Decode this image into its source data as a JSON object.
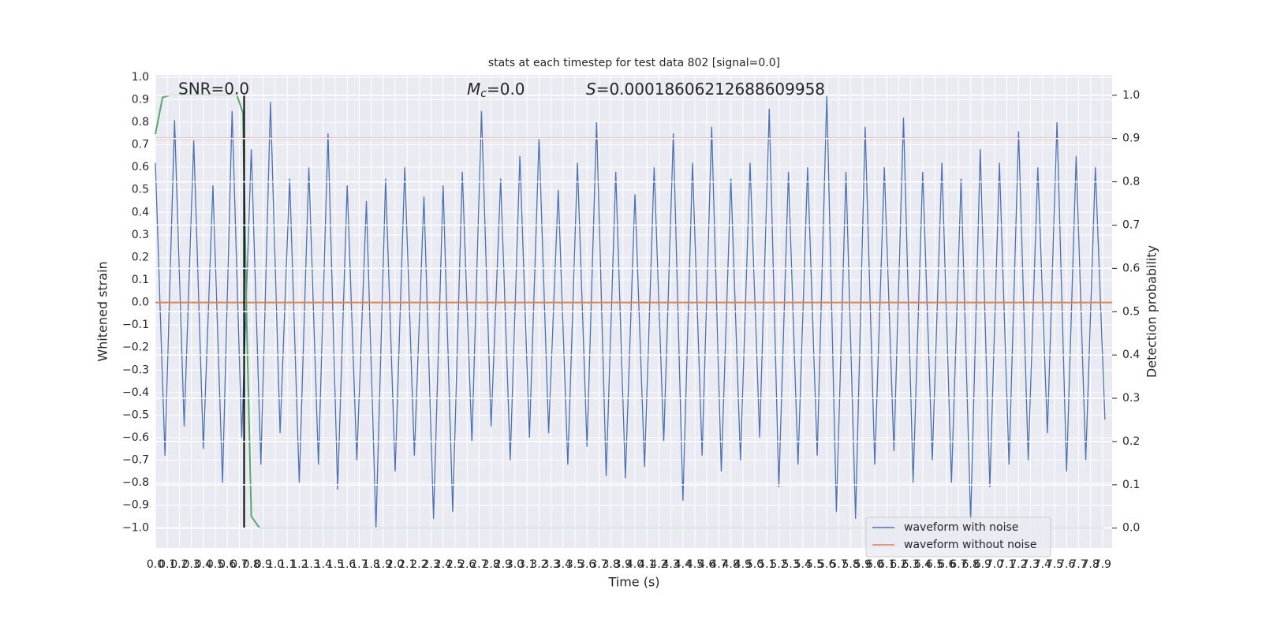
{
  "chart_data": {
    "type": "line",
    "title": "stats at each timestep for test data 802 [signal=0.0]",
    "xlabel": "Time (s)",
    "ylabel": "Whitened strain",
    "y2label": "Detection probability",
    "xlim": [
      0,
      7.98
    ],
    "ylim": [
      -1.09,
      1.01
    ],
    "y2lim": [
      -0.046,
      1.047
    ],
    "xticks": [
      {
        "value": 0,
        "label": "0.0"
      },
      0.1,
      0.2,
      0.3,
      0.4,
      0.5,
      0.6,
      0.7,
      0.8,
      0.9,
      {
        "value": 1,
        "label": "1.0"
      },
      1.1,
      1.2,
      1.3,
      1.4,
      1.5,
      1.6,
      1.7,
      1.8,
      1.9,
      {
        "value": 2,
        "label": "2.0"
      },
      2.1,
      2.2,
      2.3,
      2.4,
      2.5,
      2.6,
      2.7,
      2.8,
      2.9,
      {
        "value": 3,
        "label": "3.0"
      },
      3.1,
      3.2,
      3.3,
      3.4,
      3.5,
      3.6,
      3.7,
      3.8,
      3.9,
      {
        "value": 4,
        "label": "4.0"
      },
      4.1,
      4.2,
      4.3,
      4.4,
      4.5,
      4.6,
      4.7,
      4.8,
      4.9,
      {
        "value": 5,
        "label": "5.0"
      },
      5.1,
      5.2,
      5.3,
      5.4,
      5.5,
      5.6,
      5.7,
      5.8,
      5.9,
      {
        "value": 6,
        "label": "6.0"
      },
      6.1,
      6.2,
      6.3,
      6.4,
      6.5,
      6.6,
      6.7,
      6.8,
      6.9,
      {
        "value": 7,
        "label": "7.0"
      },
      7.1,
      7.2,
      7.3,
      7.4,
      7.5,
      7.6,
      7.7,
      7.8,
      7.9
    ],
    "yticks": [
      {
        "value": -1,
        "label": "−1.0"
      },
      {
        "value": -0.9,
        "label": "−0.9"
      },
      {
        "value": -0.8,
        "label": "−0.8"
      },
      {
        "value": -0.7,
        "label": "−0.7"
      },
      {
        "value": -0.6,
        "label": "−0.6"
      },
      {
        "value": -0.5,
        "label": "−0.5"
      },
      {
        "value": -0.4,
        "label": "−0.4"
      },
      {
        "value": -0.3,
        "label": "−0.3"
      },
      {
        "value": -0.2,
        "label": "−0.2"
      },
      {
        "value": -0.1,
        "label": "−0.1"
      },
      {
        "value": 0,
        "label": "0.0"
      },
      0.1,
      0.2,
      0.3,
      0.4,
      0.5,
      0.6,
      0.7,
      0.8,
      0.9,
      {
        "value": 1,
        "label": "1.0"
      }
    ],
    "y2ticks": [
      {
        "value": 0,
        "label": "0.0"
      },
      0.1,
      0.2,
      0.3,
      0.4,
      0.5,
      0.6,
      0.7,
      0.8,
      0.9,
      {
        "value": 1,
        "label": "1.0"
      }
    ],
    "grid": true,
    "legend": "lower right",
    "series": [
      {
        "name": "waveform with noise",
        "color": "#4c72b0",
        "x": [
          0,
          0.08,
          0.16,
          0.24,
          0.32,
          0.4,
          0.48,
          0.56,
          0.64,
          0.72,
          0.8,
          0.88,
          0.96,
          1.04,
          1.12,
          1.2,
          1.28,
          1.36,
          1.44,
          1.52,
          1.6,
          1.68,
          1.76,
          1.84,
          1.92,
          2,
          2.08,
          2.16,
          2.24,
          2.32,
          2.4,
          2.48,
          2.56,
          2.64,
          2.72,
          2.8,
          2.88,
          2.96,
          3.04,
          3.12,
          3.2,
          3.28,
          3.36,
          3.44,
          3.52,
          3.6,
          3.68,
          3.76,
          3.84,
          3.92,
          4,
          4.08,
          4.16,
          4.24,
          4.32,
          4.4,
          4.48,
          4.56,
          4.64,
          4.72,
          4.8,
          4.88,
          4.96,
          5.04,
          5.12,
          5.2,
          5.28,
          5.36,
          5.44,
          5.52,
          5.6,
          5.68,
          5.76,
          5.84,
          5.92,
          6,
          6.08,
          6.16,
          6.24,
          6.32,
          6.4,
          6.48,
          6.56,
          6.64,
          6.72,
          6.8,
          6.88,
          6.96,
          7.04,
          7.12,
          7.2,
          7.28,
          7.36,
          7.44,
          7.52,
          7.6,
          7.68,
          7.76,
          7.84,
          7.92
        ],
        "values": [
          0.62,
          -0.68,
          0.81,
          -0.55,
          0.72,
          -0.65,
          0.52,
          -0.8,
          0.85,
          -0.6,
          0.68,
          -0.72,
          0.89,
          -0.58,
          0.55,
          -0.8,
          0.6,
          -0.72,
          0.75,
          -0.83,
          0.52,
          -0.7,
          0.45,
          -1.0,
          0.55,
          -0.75,
          0.6,
          -0.68,
          0.47,
          -0.96,
          0.52,
          -0.93,
          0.58,
          -0.62,
          0.85,
          -0.55,
          0.55,
          -0.7,
          0.65,
          -0.6,
          0.73,
          -0.58,
          0.5,
          -0.72,
          0.62,
          -0.64,
          0.8,
          -0.77,
          0.58,
          -0.78,
          0.48,
          -0.73,
          0.6,
          -0.62,
          0.75,
          -0.88,
          0.62,
          -0.68,
          0.78,
          -0.75,
          0.55,
          -0.7,
          0.62,
          -0.6,
          0.86,
          -0.82,
          0.58,
          -0.72,
          0.6,
          -0.68,
          0.92,
          -0.93,
          0.58,
          -0.96,
          0.78,
          -0.72,
          0.6,
          -0.66,
          0.82,
          -0.8,
          0.58,
          -0.7,
          0.62,
          -0.8,
          0.55,
          -0.97,
          0.68,
          -0.82,
          0.62,
          -0.72,
          0.76,
          -0.7,
          0.6,
          -0.58,
          0.8,
          -0.75,
          0.65,
          -0.7,
          0.6,
          -0.52
        ]
      },
      {
        "name": "waveform without noise",
        "color": "#dd8452",
        "x": [
          0,
          7.98
        ],
        "values": [
          0,
          0
        ]
      }
    ],
    "detection": {
      "color": "#55a868",
      "axis": "y2",
      "x": [
        0,
        0.06,
        0.12,
        0.68,
        0.73,
        0.76,
        0.8,
        0.87,
        7.91
      ],
      "values": [
        0.91,
        0.995,
        1.0,
        1.0,
        0.96,
        0.5,
        0.027,
        0.0,
        0.0
      ]
    },
    "threshold": {
      "value": 0.9,
      "axis": "y2",
      "color": "#c44e52"
    },
    "vline": {
      "x": 0.74,
      "ymin": -1.0,
      "ymax": 0.92,
      "color": "#000000"
    },
    "annotations": [
      {
        "text": "SNR=0.0"
      },
      {
        "symbol": "M",
        "subscript": "c",
        "text": "=0.0"
      },
      {
        "symbol": "S",
        "text": "=0.00018606212688609958"
      }
    ]
  }
}
